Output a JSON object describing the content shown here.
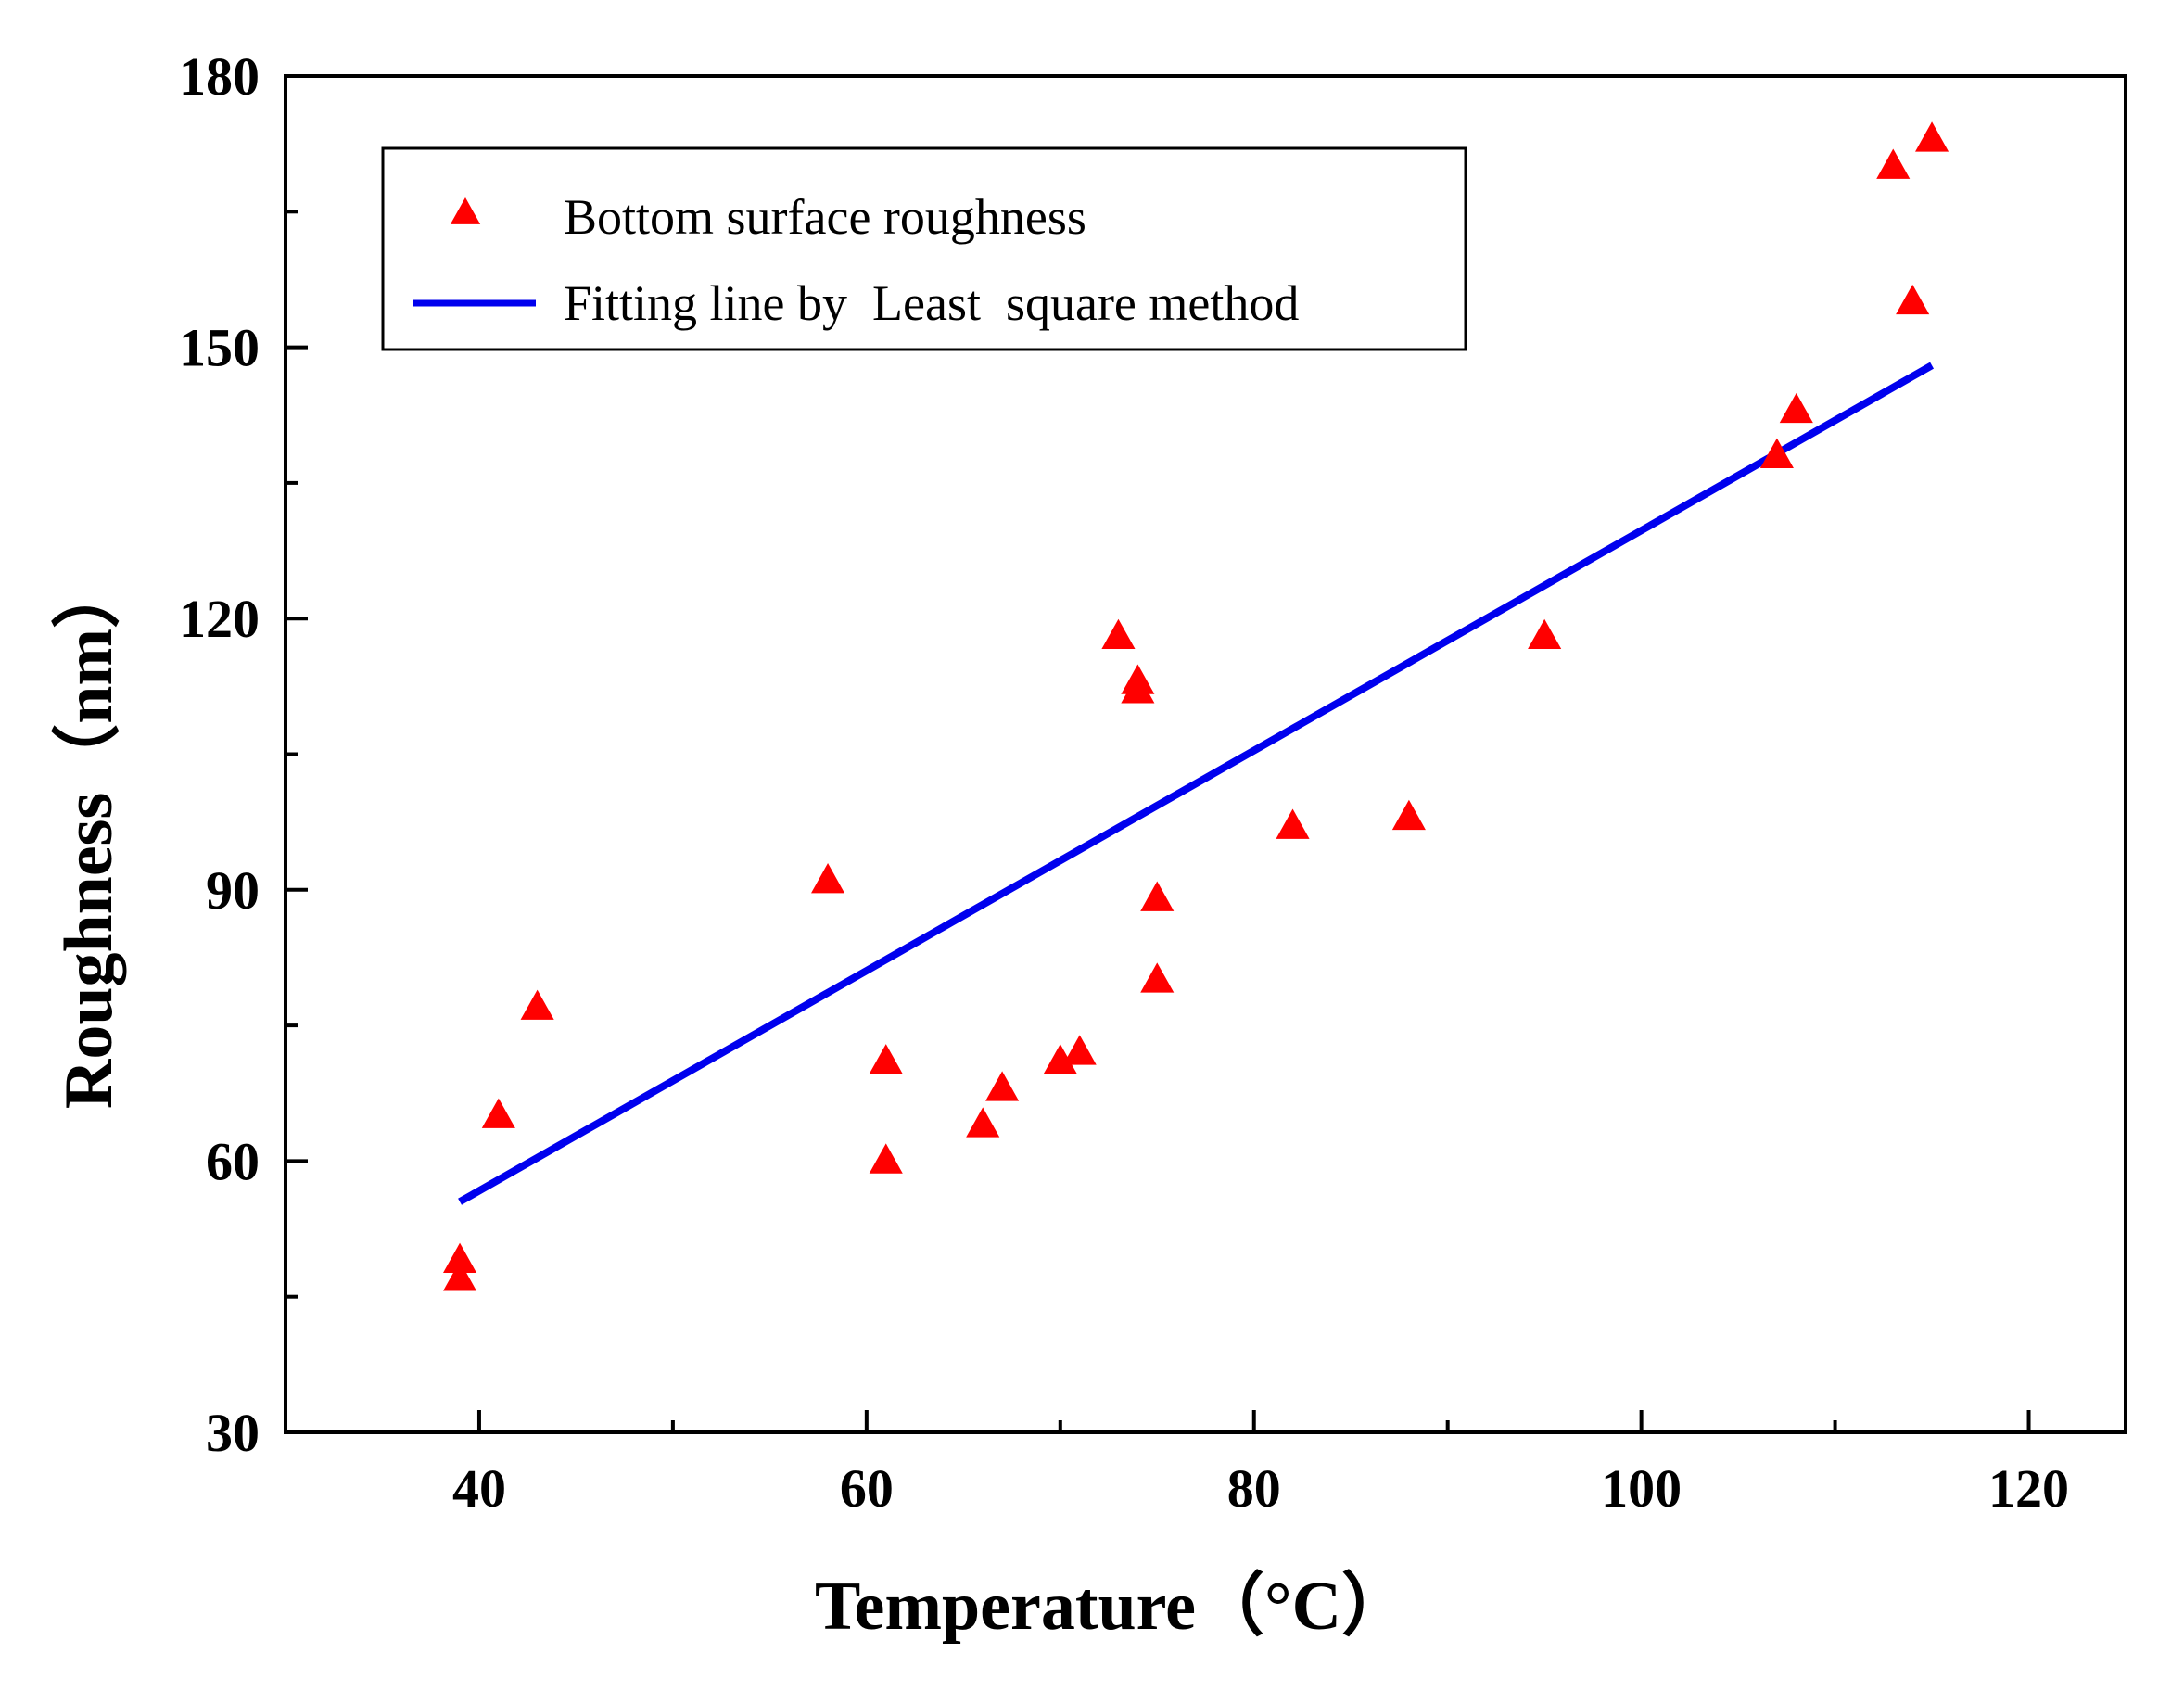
{
  "chart_data": {
    "type": "scatter",
    "title": "",
    "xlabel": "Temperature（°C）",
    "ylabel": "Roughness（nm）",
    "xlim": [
      30,
      125
    ],
    "ylim": [
      30,
      180
    ],
    "x_ticks": [
      40,
      60,
      80,
      100,
      120
    ],
    "x_minor_ticks": [
      50,
      70,
      90,
      110
    ],
    "y_ticks": [
      30,
      60,
      90,
      120,
      150,
      180
    ],
    "y_minor_ticks": [
      45,
      75,
      105,
      135,
      165
    ],
    "grid": false,
    "legend_position": "top-left",
    "series": [
      {
        "name": "Bottom surface roughness",
        "kind": "scatter",
        "marker": "triangle",
        "color": "#ff0000",
        "points": [
          [
            39,
            49
          ],
          [
            39,
            47
          ],
          [
            41,
            65
          ],
          [
            43,
            77
          ],
          [
            58,
            91
          ],
          [
            61,
            71
          ],
          [
            61,
            60
          ],
          [
            66,
            64
          ],
          [
            67,
            68
          ],
          [
            70,
            71
          ],
          [
            71,
            72
          ],
          [
            73,
            118
          ],
          [
            74,
            113
          ],
          [
            74,
            112
          ],
          [
            75,
            89
          ],
          [
            75,
            80
          ],
          [
            82,
            97
          ],
          [
            88,
            98
          ],
          [
            95,
            118
          ],
          [
            107,
            138
          ],
          [
            108,
            143
          ],
          [
            113,
            170
          ],
          [
            114,
            155
          ],
          [
            115,
            173
          ]
        ]
      },
      {
        "name": "Fitting line by  Least  square method",
        "kind": "line",
        "color": "#0000ee",
        "points": [
          [
            39,
            55.5
          ],
          [
            115,
            148
          ]
        ]
      }
    ]
  }
}
